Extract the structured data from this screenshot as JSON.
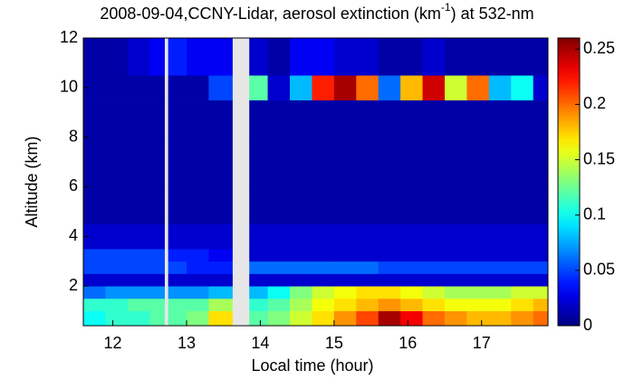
{
  "chart_data": {
    "type": "heatmap",
    "title": "2008-09-04,CCNY-Lidar, aerosol extinction (km",
    "title_superscript": "-1",
    "title_end": ") at 532-nm",
    "x_label": "Local time (hour)",
    "y_label": "Altitude (km)",
    "colormap": "jet",
    "x_edges": [
      11.6,
      11.9,
      12.2,
      12.5,
      12.7,
      12.75,
      13.0,
      13.3,
      13.62,
      13.85,
      14.1,
      14.4,
      14.7,
      15.0,
      15.3,
      15.6,
      15.9,
      16.2,
      16.5,
      16.8,
      17.1,
      17.4,
      17.7,
      17.9
    ],
    "y_edges": [
      0.4,
      1.0,
      1.5,
      2.0,
      2.5,
      3.0,
      3.5,
      4.5,
      6,
      8,
      9.5,
      10.5,
      12
    ],
    "values": [
      [
        0.1,
        0.11,
        0.11,
        0.12,
        null,
        0.12,
        0.13,
        0.17,
        null,
        0.12,
        0.13,
        0.15,
        0.17,
        0.19,
        0.21,
        0.25,
        0.23,
        0.2,
        0.19,
        0.18,
        0.18,
        0.19,
        0.2
      ],
      [
        0.11,
        0.11,
        0.12,
        0.12,
        null,
        0.12,
        0.12,
        0.14,
        null,
        0.11,
        0.12,
        0.14,
        0.16,
        0.17,
        0.18,
        0.19,
        0.18,
        0.17,
        0.16,
        0.16,
        0.16,
        0.17,
        0.18
      ],
      [
        0.06,
        0.07,
        0.07,
        0.07,
        null,
        0.07,
        0.07,
        0.08,
        null,
        0.08,
        0.1,
        0.13,
        0.15,
        0.16,
        0.17,
        0.17,
        0.16,
        0.15,
        0.14,
        0.14,
        0.14,
        0.15,
        0.15
      ],
      [
        0.02,
        0.02,
        0.02,
        0.02,
        null,
        0.02,
        0.02,
        0.02,
        null,
        0.02,
        0.02,
        0.02,
        0.02,
        0.02,
        0.02,
        0.02,
        0.02,
        0.02,
        0.02,
        0.02,
        0.02,
        0.02,
        0.02
      ],
      [
        0.05,
        0.05,
        0.05,
        0.05,
        null,
        0.05,
        0.04,
        0.04,
        null,
        0.06,
        0.06,
        0.06,
        0.06,
        0.06,
        0.06,
        0.05,
        0.05,
        0.05,
        0.05,
        0.05,
        0.05,
        0.05,
        0.05
      ],
      [
        0.05,
        0.05,
        0.05,
        0.05,
        null,
        0.04,
        0.04,
        0.03,
        null,
        0.02,
        0.02,
        0.02,
        0.02,
        0.02,
        0.02,
        0.02,
        0.02,
        0.02,
        0.02,
        0.02,
        0.02,
        0.02,
        0.02
      ],
      [
        0.02,
        0.02,
        0.02,
        0.02,
        null,
        0.02,
        0.02,
        0.02,
        null,
        0.02,
        0.02,
        0.02,
        0.02,
        0.02,
        0.02,
        0.02,
        0.02,
        0.02,
        0.02,
        0.02,
        0.02,
        0.02,
        0.02
      ],
      [
        0.01,
        0.01,
        0.01,
        0.01,
        null,
        0.01,
        0.01,
        0.01,
        null,
        0.01,
        0.01,
        0.01,
        0.01,
        0.01,
        0.01,
        0.01,
        0.01,
        0.01,
        0.01,
        0.01,
        0.01,
        0.01,
        0.01
      ],
      [
        0.01,
        0.01,
        0.01,
        0.01,
        null,
        0.01,
        0.01,
        0.01,
        null,
        0.01,
        0.01,
        0.01,
        0.01,
        0.01,
        0.01,
        0.01,
        0.01,
        0.01,
        0.01,
        0.01,
        0.01,
        0.01,
        0.01
      ],
      [
        0.01,
        0.01,
        0.01,
        0.01,
        null,
        0.01,
        0.01,
        0.01,
        null,
        0.01,
        0.01,
        0.01,
        0.01,
        0.01,
        0.01,
        0.01,
        0.01,
        0.01,
        0.01,
        0.01,
        0.01,
        0.01,
        0.01
      ],
      [
        0.01,
        0.01,
        0.01,
        0.01,
        null,
        0.01,
        0.01,
        0.05,
        null,
        0.12,
        0.02,
        0.08,
        0.22,
        0.25,
        0.2,
        0.06,
        0.18,
        0.24,
        0.15,
        0.2,
        0.08,
        0.1,
        0.02
      ],
      [
        0.01,
        0.01,
        0.02,
        0.03,
        null,
        0.04,
        0.03,
        0.03,
        null,
        0.02,
        0.01,
        0.03,
        0.03,
        0.02,
        0.02,
        0.01,
        0.01,
        0.02,
        0.01,
        0.01,
        0.01,
        0.01,
        0.01
      ]
    ],
    "xlim": [
      11.6,
      17.9
    ],
    "xticks": [
      12,
      13,
      14,
      15,
      16,
      17
    ],
    "ylim": [
      0.4,
      12
    ],
    "yticks": [
      2,
      4,
      6,
      8,
      10,
      12
    ],
    "clim": [
      0,
      0.26
    ],
    "cticks": [
      0,
      0.05,
      0.1,
      0.15,
      0.2,
      0.25
    ]
  }
}
